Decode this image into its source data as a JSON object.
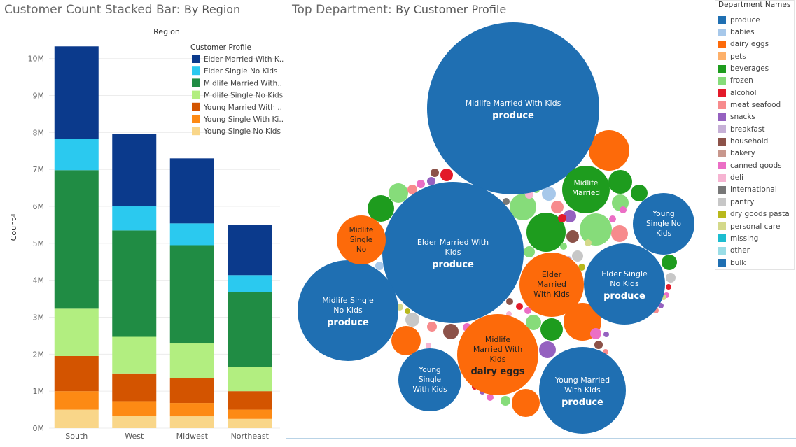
{
  "left_title": {
    "main": "Customer Count Stacked Bar:",
    "sub": "By Region"
  },
  "right_title": {
    "main": "Top Department:",
    "sub": "By Customer Profile"
  },
  "chart_data": [
    {
      "type": "bar",
      "stacked": true,
      "title": "Customer Count Stacked Bar: By Region",
      "column_header": "Region",
      "ylabel": "Count",
      "categories": [
        "South",
        "West",
        "Midwest",
        "Northeast"
      ],
      "ylim": [
        0,
        10.6
      ],
      "y_ticks": [
        "0M",
        "1M",
        "2M",
        "3M",
        "4M",
        "5M",
        "6M",
        "7M",
        "8M",
        "9M",
        "10M"
      ],
      "grid": true,
      "legend_title": "Customer Profile",
      "legend_position": "top-right",
      "legend_labels": [
        "Elder Married With K..",
        "Elder Single No Kids",
        "Midlife Married With..",
        "Midlife Single No Kids",
        "Young Married With ..",
        "Young Single With Ki..",
        "Young Single No Kids"
      ],
      "series": [
        {
          "name": "Young Single No Kids",
          "color": "#f9d689",
          "values": [
            0.5,
            0.33,
            0.32,
            0.25
          ]
        },
        {
          "name": "Young Single With Kids",
          "color": "#fd8a14",
          "values": [
            0.5,
            0.4,
            0.36,
            0.25
          ]
        },
        {
          "name": "Young Married With Kids",
          "color": "#d35400",
          "values": [
            0.95,
            0.75,
            0.68,
            0.5
          ]
        },
        {
          "name": "Midlife Single No Kids",
          "color": "#b2ee80",
          "values": [
            1.28,
            0.99,
            0.93,
            0.66
          ]
        },
        {
          "name": "Midlife Married With Kids",
          "color": "#208c44",
          "values": [
            3.75,
            2.88,
            2.66,
            2.03
          ]
        },
        {
          "name": "Elder Single No Kids",
          "color": "#2bc9ef",
          "values": [
            0.84,
            0.65,
            0.59,
            0.45
          ]
        },
        {
          "name": "Elder Married With Kids",
          "color": "#0b3a8c",
          "values": [
            2.51,
            1.95,
            1.76,
            1.35
          ]
        }
      ]
    },
    {
      "type": "packed_bubble",
      "title": "Top Department: By Customer Profile",
      "legend_title": "Department Names",
      "legend_position": "right",
      "departments": [
        {
          "name": "produce",
          "color": "#1f6fb2"
        },
        {
          "name": "babies",
          "color": "#a7c8ea"
        },
        {
          "name": "dairy eggs",
          "color": "#fd6a0a"
        },
        {
          "name": "pets",
          "color": "#fdb06a"
        },
        {
          "name": "beverages",
          "color": "#1e9c1e"
        },
        {
          "name": "frozen",
          "color": "#86dc7a"
        },
        {
          "name": "alcohol",
          "color": "#e31a2a"
        },
        {
          "name": "meat seafood",
          "color": "#f78b8d"
        },
        {
          "name": "snacks",
          "color": "#9561c0"
        },
        {
          "name": "breakfast",
          "color": "#c6b0d6"
        },
        {
          "name": "household",
          "color": "#8c5249"
        },
        {
          "name": "bakery",
          "color": "#c8978d"
        },
        {
          "name": "canned goods",
          "color": "#eb6ec5"
        },
        {
          "name": "deli",
          "color": "#f6b4d2"
        },
        {
          "name": "international",
          "color": "#777777"
        },
        {
          "name": "pantry",
          "color": "#c7c7c7"
        },
        {
          "name": "dry goods pasta",
          "color": "#b8b81c"
        },
        {
          "name": "personal care",
          "color": "#d4d98a"
        },
        {
          "name": "missing",
          "color": "#1cbdd0"
        },
        {
          "name": "other",
          "color": "#9adde6"
        },
        {
          "name": "bulk",
          "color": "#1f6fb2"
        }
      ],
      "labeled_bubbles": [
        {
          "profile": "Midlife Married With Kids",
          "department": "produce"
        },
        {
          "profile": "Elder Married With Kids",
          "department": "produce"
        },
        {
          "profile": "Midlife Single No Kids",
          "department": "produce"
        },
        {
          "profile": "Midlife Married With Kids",
          "department": "dairy eggs"
        },
        {
          "profile": "Young Married With Kids",
          "department": "produce"
        },
        {
          "profile": "Elder Single No Kids",
          "department": "produce"
        },
        {
          "profile": "Young Single With Kids",
          "department": ""
        },
        {
          "profile": "Young Single No Kids",
          "department": ""
        },
        {
          "profile": "Elder Married With Kids",
          "department": ""
        },
        {
          "profile": "Midlife Single No",
          "department": ""
        },
        {
          "profile": "Midlife Married",
          "department": ""
        }
      ]
    }
  ]
}
